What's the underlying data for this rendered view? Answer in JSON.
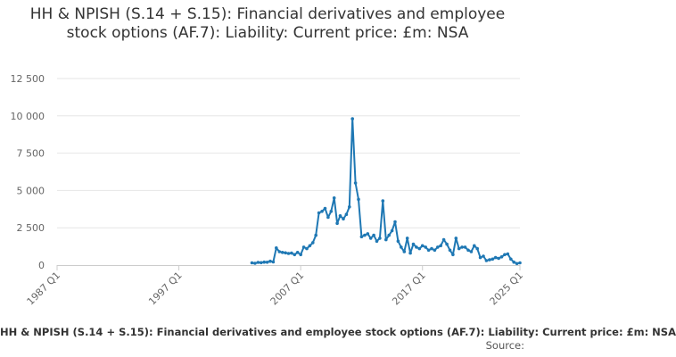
{
  "chart_data": {
    "type": "line",
    "title": "HH & NPISH (S.14 + S.15): Financial derivatives and employee stock options (AF.7): Liability: Current price: £m: NSA",
    "xlabel": "",
    "ylabel": "",
    "x_ticks": [
      "1987 Q1",
      "1997 Q1",
      "2007 Q1",
      "2017 Q1",
      "2025 Q1"
    ],
    "y_ticks": [
      "0",
      "2 500",
      "5 000",
      "7 500",
      "10 000",
      "12 500"
    ],
    "xlim": [
      1987.0,
      2025.0
    ],
    "ylim": [
      0,
      12500
    ],
    "grid": "horizontal",
    "legend_text": "HH & NPISH (S.14 + S.15): Financial derivatives and employee stock options (AF.7): Liability: Current price: £m: NSA",
    "source_label": "Source:",
    "color": "#1f78b4",
    "series": [
      {
        "x": [
          "2003 Q1",
          "2003 Q2",
          "2003 Q3",
          "2003 Q4",
          "2004 Q1",
          "2004 Q2",
          "2004 Q3",
          "2004 Q4",
          "2005 Q1",
          "2005 Q2",
          "2005 Q3",
          "2005 Q4",
          "2006 Q1",
          "2006 Q2",
          "2006 Q3",
          "2006 Q4",
          "2007 Q1",
          "2007 Q2",
          "2007 Q3",
          "2007 Q4",
          "2008 Q1",
          "2008 Q2",
          "2008 Q3",
          "2008 Q4",
          "2009 Q1",
          "2009 Q2",
          "2009 Q3",
          "2009 Q4",
          "2010 Q1",
          "2010 Q2",
          "2010 Q3",
          "2010 Q4",
          "2011 Q1",
          "2011 Q2",
          "2011 Q3",
          "2011 Q4",
          "2012 Q1",
          "2012 Q2",
          "2012 Q3",
          "2012 Q4",
          "2013 Q1",
          "2013 Q2",
          "2013 Q3",
          "2013 Q4",
          "2014 Q1",
          "2014 Q2",
          "2014 Q3",
          "2014 Q4",
          "2015 Q1",
          "2015 Q2",
          "2015 Q3",
          "2015 Q4",
          "2016 Q1",
          "2016 Q2",
          "2016 Q3",
          "2016 Q4",
          "2017 Q1",
          "2017 Q2",
          "2017 Q3",
          "2017 Q4",
          "2018 Q1",
          "2018 Q2",
          "2018 Q3",
          "2018 Q4",
          "2019 Q1",
          "2019 Q2",
          "2019 Q3",
          "2019 Q4",
          "2020 Q1",
          "2020 Q2",
          "2020 Q3",
          "2020 Q4",
          "2021 Q1",
          "2021 Q2",
          "2021 Q3",
          "2021 Q4",
          "2022 Q1",
          "2022 Q2",
          "2022 Q3",
          "2022 Q4",
          "2023 Q1",
          "2023 Q2",
          "2023 Q3",
          "2023 Q4",
          "2024 Q1",
          "2024 Q2",
          "2024 Q3",
          "2024 Q4",
          "2025 Q1"
        ],
        "values": [
          150,
          120,
          180,
          160,
          200,
          190,
          260,
          210,
          1150,
          900,
          850,
          820,
          780,
          800,
          700,
          850,
          700,
          1200,
          1100,
          1300,
          1500,
          2000,
          3500,
          3600,
          3800,
          3200,
          3600,
          4500,
          2800,
          3300,
          3100,
          3400,
          3900,
          9800,
          5500,
          4400,
          1900,
          2000,
          2100,
          1800,
          2000,
          1600,
          1800,
          4300,
          1700,
          2000,
          2300,
          2900,
          1600,
          1200,
          900,
          1800,
          800,
          1400,
          1200,
          1100,
          1300,
          1200,
          1000,
          1100,
          1000,
          1200,
          1300,
          1700,
          1400,
          1000,
          700,
          1800,
          1100,
          1200,
          1200,
          1000,
          900,
          1300,
          1100,
          500,
          600,
          300,
          350,
          400,
          500,
          450,
          550,
          700,
          750,
          400,
          200,
          100,
          150
        ]
      }
    ]
  }
}
